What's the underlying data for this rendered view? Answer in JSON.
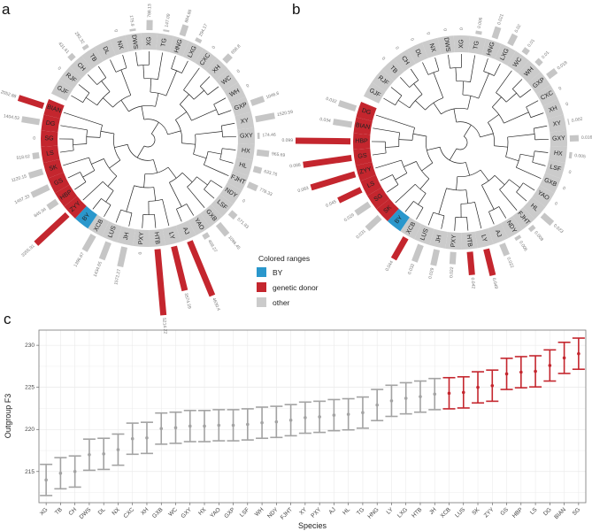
{
  "panel_labels": {
    "a": "a",
    "b": "b",
    "c": "c"
  },
  "colors": {
    "donor": "#c4262e",
    "by": "#2a97cc",
    "other": "#cbcbcb",
    "bar_other": "#c6c6c6",
    "point_other": "#a3a3a3"
  },
  "legend": {
    "title": "Colored ranges",
    "items": [
      {
        "label": "BY",
        "group": "by"
      },
      {
        "label": "genetic donor",
        "group": "donor"
      },
      {
        "label": "other",
        "group": "other"
      }
    ]
  },
  "panel_a": {
    "leaves": [
      {
        "label": "GJF",
        "group": "other",
        "value": null,
        "value_label": null,
        "highlight": false
      },
      {
        "label": "RJF",
        "group": "other",
        "value": 0,
        "value_label": "0",
        "highlight": false
      },
      {
        "label": "CH",
        "group": "other",
        "value": 431.61,
        "value_label": "431.61",
        "highlight": false
      },
      {
        "label": "TB",
        "group": "other",
        "value": 283.32,
        "value_label": "283.32",
        "highlight": false
      },
      {
        "label": "DL",
        "group": "other",
        "value": null,
        "value_label": null,
        "highlight": false
      },
      {
        "label": "NX",
        "group": "other",
        "value": 0,
        "value_label": "0",
        "highlight": false
      },
      {
        "label": "DWS",
        "group": "other",
        "value": 175.9,
        "value_label": "175.9",
        "highlight": false
      },
      {
        "label": "XG",
        "group": "other",
        "value": 788.13,
        "value_label": "788.13",
        "highlight": false
      },
      {
        "label": "TG",
        "group": "other",
        "value": 147.09,
        "value_label": "147.09",
        "highlight": false
      },
      {
        "label": "HNG",
        "group": "other",
        "value": 864.86,
        "value_label": "864.86",
        "highlight": false
      },
      {
        "label": "LXG",
        "group": "other",
        "value": 294.17,
        "value_label": "294.17",
        "highlight": false
      },
      {
        "label": "CXC",
        "group": "other",
        "value": 0,
        "value_label": "0",
        "highlight": false
      },
      {
        "label": "XH",
        "group": "other",
        "value": 656.8,
        "value_label": "656.8",
        "highlight": false
      },
      {
        "label": "WC",
        "group": "other",
        "value": 0,
        "value_label": "0",
        "highlight": false
      },
      {
        "label": "WH",
        "group": "other",
        "value": 0,
        "value_label": "0",
        "highlight": false
      },
      {
        "label": "GXP",
        "group": "other",
        "value": 1046.6,
        "value_label": "1046.6",
        "highlight": false
      },
      {
        "label": "XY",
        "group": "other",
        "value": 1520.59,
        "value_label": "1520.59",
        "highlight": false
      },
      {
        "label": "GXY",
        "group": "other",
        "value": 174.46,
        "value_label": "174.46",
        "highlight": false
      },
      {
        "label": "HX",
        "group": "other",
        "value": 965.69,
        "value_label": "965.69",
        "highlight": false
      },
      {
        "label": "HL",
        "group": "other",
        "value": 633.76,
        "value_label": "633.76",
        "highlight": false
      },
      {
        "label": "FJHT",
        "group": "other",
        "value": 778.33,
        "value_label": "778.33",
        "highlight": false
      },
      {
        "label": "NDY",
        "group": "other",
        "value": 0,
        "value_label": "0",
        "highlight": false
      },
      {
        "label": "LSF",
        "group": "other",
        "value": 571.93,
        "value_label": "571.93",
        "highlight": false
      },
      {
        "label": "GXB",
        "group": "other",
        "value": 1096.45,
        "value_label": "1096.45",
        "highlight": false
      },
      {
        "label": "YAO",
        "group": "other",
        "value": 409.27,
        "value_label": "409.27",
        "highlight": false
      },
      {
        "label": "AJ",
        "group": "other",
        "value": 4630.4,
        "value_label": "4630.4",
        "highlight": true
      },
      {
        "label": "LY",
        "group": "other",
        "value": 3574.29,
        "value_label": "3574.29",
        "highlight": true
      },
      {
        "label": "HTB",
        "group": "other",
        "value": 5214.22,
        "value_label": "5214.22",
        "highlight": true
      },
      {
        "label": "PXY",
        "group": "other",
        "value": 0,
        "value_label": "0",
        "highlight": false
      },
      {
        "label": "JH",
        "group": "other",
        "value": 1572.27,
        "value_label": "1572.27",
        "highlight": false
      },
      {
        "label": "LUS",
        "group": "other",
        "value": 1434.65,
        "value_label": "1434.65",
        "highlight": false
      },
      {
        "label": "XCB",
        "group": "other",
        "value": 1396.67,
        "value_label": "1396.67",
        "highlight": false
      },
      {
        "label": "BY",
        "group": "by",
        "value": null,
        "value_label": null,
        "highlight": false
      },
      {
        "label": "ZYY",
        "group": "donor",
        "value": 3355.91,
        "value_label": "3355.91",
        "highlight": true
      },
      {
        "label": "HBP",
        "group": "donor",
        "value": 845.94,
        "value_label": "845.94",
        "highlight": false
      },
      {
        "label": "GS",
        "group": "donor",
        "value": 1467.33,
        "value_label": "1467.33",
        "highlight": false
      },
      {
        "label": "SK",
        "group": "donor",
        "value": 1120.15,
        "value_label": "1120.15",
        "highlight": false
      },
      {
        "label": "LS",
        "group": "donor",
        "value": 518.62,
        "value_label": "518.62",
        "highlight": false
      },
      {
        "label": "SG",
        "group": "donor",
        "value": 0,
        "value_label": "0",
        "highlight": false
      },
      {
        "label": "DG",
        "group": "donor",
        "value": 1404.53,
        "value_label": "1404.53",
        "highlight": false
      },
      {
        "label": "BIAN",
        "group": "donor",
        "value": 2052.88,
        "value_label": "2052.88",
        "highlight": true
      }
    ]
  },
  "panel_b": {
    "leaves": [
      {
        "label": "GJF",
        "group": "other",
        "value": null,
        "value_label": null,
        "highlight": false
      },
      {
        "label": "RJF",
        "group": "other",
        "value": null,
        "value_label": null,
        "highlight": false
      },
      {
        "label": "TB",
        "group": "other",
        "value": 0,
        "value_label": "0",
        "highlight": false
      },
      {
        "label": "CH",
        "group": "other",
        "value": 0,
        "value_label": "0",
        "highlight": false
      },
      {
        "label": "DL",
        "group": "other",
        "value": 0,
        "value_label": "0",
        "highlight": false
      },
      {
        "label": "NX",
        "group": "other",
        "value": 0,
        "value_label": "0",
        "highlight": false
      },
      {
        "label": "DWS",
        "group": "other",
        "value": 0,
        "value_label": "0",
        "highlight": false
      },
      {
        "label": "XG",
        "group": "other",
        "value": 0,
        "value_label": "0",
        "highlight": false
      },
      {
        "label": "TG",
        "group": "other",
        "value": 0.006,
        "value_label": "0.006",
        "highlight": false
      },
      {
        "label": "HNG",
        "group": "other",
        "value": 0.021,
        "value_label": "0.021",
        "highlight": false
      },
      {
        "label": "LXG",
        "group": "other",
        "value": 0.02,
        "value_label": "0.02",
        "highlight": false
      },
      {
        "label": "WC",
        "group": "other",
        "value": 0.01,
        "value_label": "0.01",
        "highlight": false
      },
      {
        "label": "WH",
        "group": "other",
        "value": 0.01,
        "value_label": "0.01",
        "highlight": false
      },
      {
        "label": "GXP",
        "group": "other",
        "value": 0.018,
        "value_label": "0.018",
        "highlight": false
      },
      {
        "label": "CXC",
        "group": "other",
        "value": 0,
        "value_label": "0",
        "highlight": false
      },
      {
        "label": "XH",
        "group": "other",
        "value": 0,
        "value_label": "0",
        "highlight": false
      },
      {
        "label": "XY",
        "group": "other",
        "value": 0.002,
        "value_label": "0.002",
        "highlight": false
      },
      {
        "label": "GXY",
        "group": "other",
        "value": 0.016,
        "value_label": "0.016",
        "highlight": false
      },
      {
        "label": "HX",
        "group": "other",
        "value": 0.005,
        "value_label": "0.005",
        "highlight": false
      },
      {
        "label": "LSF",
        "group": "other",
        "value": 0,
        "value_label": "0",
        "highlight": false
      },
      {
        "label": "GXB",
        "group": "other",
        "value": 0,
        "value_label": "0",
        "highlight": false
      },
      {
        "label": "YAO",
        "group": "other",
        "value": 0,
        "value_label": "0",
        "highlight": false
      },
      {
        "label": "HL",
        "group": "other",
        "value": 0.023,
        "value_label": "0.023",
        "highlight": false
      },
      {
        "label": "FJHT",
        "group": "other",
        "value": 0.008,
        "value_label": "0.008",
        "highlight": false
      },
      {
        "label": "NDY",
        "group": "other",
        "value": 0.006,
        "value_label": "0.006",
        "highlight": false
      },
      {
        "label": "AJ",
        "group": "other",
        "value": 0.022,
        "value_label": "0.022",
        "highlight": false
      },
      {
        "label": "LY",
        "group": "other",
        "value": 0.049,
        "value_label": "0.049",
        "highlight": true
      },
      {
        "label": "HTB",
        "group": "other",
        "value": 0.042,
        "value_label": "0.042",
        "highlight": true
      },
      {
        "label": "PXY",
        "group": "other",
        "value": 0.022,
        "value_label": "0.022",
        "highlight": false
      },
      {
        "label": "JH",
        "group": "other",
        "value": 0.029,
        "value_label": "0.029",
        "highlight": false
      },
      {
        "label": "LUS",
        "group": "other",
        "value": 0.032,
        "value_label": "0.032",
        "highlight": false
      },
      {
        "label": "XCB",
        "group": "other",
        "value": 0.044,
        "value_label": "0.044",
        "highlight": true
      },
      {
        "label": "BY",
        "group": "by",
        "value": null,
        "value_label": null,
        "highlight": false
      },
      {
        "label": "SK",
        "group": "donor",
        "value": 0.031,
        "value_label": "0.031",
        "highlight": false
      },
      {
        "label": "SG",
        "group": "donor",
        "value": 0.029,
        "value_label": "0.029",
        "highlight": false
      },
      {
        "label": "LS",
        "group": "donor",
        "value": 0.045,
        "value_label": "0.045",
        "highlight": true
      },
      {
        "label": "ZYY",
        "group": "donor",
        "value": 0.083,
        "value_label": "0.083",
        "highlight": true
      },
      {
        "label": "GS",
        "group": "donor",
        "value": 0.088,
        "value_label": "0.088",
        "highlight": true
      },
      {
        "label": "HBP",
        "group": "donor",
        "value": 0.099,
        "value_label": "0.099",
        "highlight": true
      },
      {
        "label": "BIAN",
        "group": "donor",
        "value": 0.034,
        "value_label": "0.034",
        "highlight": false
      },
      {
        "label": "DG",
        "group": "donor",
        "value": 0.032,
        "value_label": "0.032",
        "highlight": false
      }
    ]
  },
  "chart_data": {
    "type": "errorbar",
    "title": "",
    "xlabel": "Species",
    "ylabel": "Outgroup F3",
    "ylim": [
      211.3,
      231.8
    ],
    "yticks": [
      215,
      220,
      225,
      230
    ],
    "grid": true,
    "categories": [
      "XG",
      "TB",
      "CH",
      "DWS",
      "DL",
      "NX",
      "CXC",
      "XH",
      "GXB",
      "WC",
      "GXY",
      "HX",
      "YAO",
      "GXP",
      "LSF",
      "WH",
      "NDY",
      "FJHT",
      "XY",
      "PXY",
      "AJ",
      "HL",
      "TG",
      "HNG",
      "LY",
      "LXG",
      "HTB",
      "JH",
      "XCB",
      "LUS",
      "SK",
      "ZYY",
      "GS",
      "HBP",
      "LS",
      "DG",
      "BIAN",
      "SG"
    ],
    "values": [
      214.0,
      214.8,
      215.0,
      217.0,
      217.1,
      217.6,
      218.9,
      219.0,
      220.1,
      220.2,
      220.4,
      220.4,
      220.5,
      220.5,
      220.6,
      220.8,
      220.9,
      221.1,
      221.4,
      221.5,
      221.7,
      221.8,
      222.0,
      222.9,
      223.4,
      223.7,
      223.9,
      224.2,
      224.3,
      224.4,
      225.0,
      225.2,
      226.6,
      226.8,
      226.9,
      227.6,
      228.5,
      229.0
    ],
    "error": 1.85,
    "highlight_from": "XCB"
  }
}
